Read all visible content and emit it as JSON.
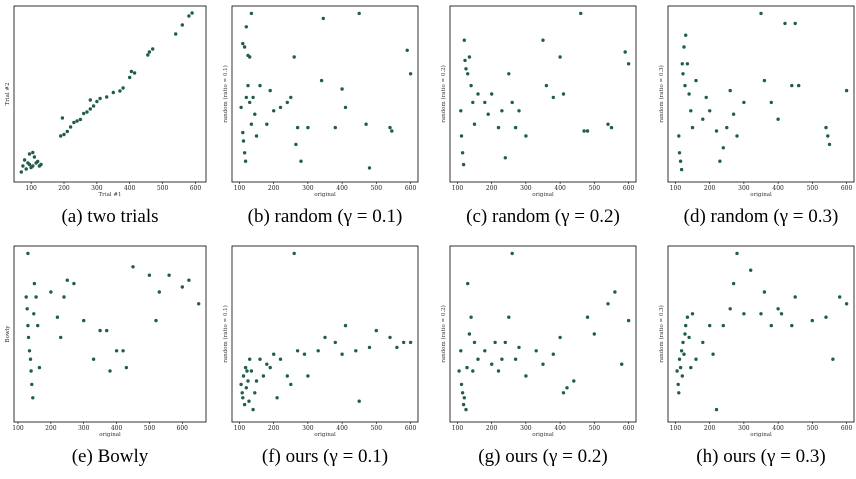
{
  "chart_data": [
    {
      "type": "scatter",
      "caption": "(a) two trials",
      "xlabel": "Trial #1",
      "ylabel": "Trial #2",
      "xlim": [
        60,
        620
      ],
      "ylim": [
        60,
        620
      ],
      "xticks": [
        100,
        200,
        300,
        400,
        500,
        600
      ],
      "points": [
        [
          70,
          80
        ],
        [
          75,
          100
        ],
        [
          80,
          120
        ],
        [
          85,
          90
        ],
        [
          90,
          110
        ],
        [
          95,
          105
        ],
        [
          100,
          95
        ],
        [
          105,
          100
        ],
        [
          110,
          130
        ],
        [
          115,
          110
        ],
        [
          120,
          115
        ],
        [
          125,
          100
        ],
        [
          130,
          105
        ],
        [
          95,
          140
        ],
        [
          105,
          145
        ],
        [
          190,
          200
        ],
        [
          195,
          260
        ],
        [
          200,
          205
        ],
        [
          210,
          215
        ],
        [
          220,
          230
        ],
        [
          230,
          245
        ],
        [
          240,
          250
        ],
        [
          250,
          255
        ],
        [
          260,
          275
        ],
        [
          270,
          280
        ],
        [
          280,
          290
        ],
        [
          290,
          300
        ],
        [
          300,
          315
        ],
        [
          280,
          320
        ],
        [
          310,
          325
        ],
        [
          330,
          330
        ],
        [
          350,
          345
        ],
        [
          370,
          350
        ],
        [
          380,
          360
        ],
        [
          400,
          395
        ],
        [
          405,
          415
        ],
        [
          415,
          410
        ],
        [
          455,
          470
        ],
        [
          460,
          480
        ],
        [
          470,
          490
        ],
        [
          540,
          540
        ],
        [
          560,
          570
        ],
        [
          580,
          600
        ],
        [
          590,
          610
        ]
      ]
    },
    {
      "type": "scatter",
      "caption": "(b) random (γ = 0.1)",
      "xlabel": "original",
      "ylabel": "random (ratio = 0.1)",
      "xlim": [
        90,
        610
      ],
      "ylim": [
        0,
        1
      ],
      "xticks": [
        100,
        200,
        300,
        400,
        500,
        600
      ],
      "points": [
        [
          110,
          0.8
        ],
        [
          115,
          0.78
        ],
        [
          120,
          0.9
        ],
        [
          125,
          0.73
        ],
        [
          130,
          0.72
        ],
        [
          135,
          0.98
        ],
        [
          105,
          0.42
        ],
        [
          110,
          0.27
        ],
        [
          112,
          0.22
        ],
        [
          115,
          0.15
        ],
        [
          118,
          0.1
        ],
        [
          120,
          0.48
        ],
        [
          125,
          0.55
        ],
        [
          130,
          0.45
        ],
        [
          135,
          0.32
        ],
        [
          140,
          0.48
        ],
        [
          145,
          0.38
        ],
        [
          150,
          0.25
        ],
        [
          160,
          0.55
        ],
        [
          180,
          0.32
        ],
        [
          190,
          0.52
        ],
        [
          200,
          0.4
        ],
        [
          220,
          0.42
        ],
        [
          240,
          0.45
        ],
        [
          250,
          0.48
        ],
        [
          260,
          0.72
        ],
        [
          265,
          0.2
        ],
        [
          270,
          0.3
        ],
        [
          280,
          0.1
        ],
        [
          300,
          0.3
        ],
        [
          340,
          0.58
        ],
        [
          345,
          0.95
        ],
        [
          380,
          0.3
        ],
        [
          400,
          0.53
        ],
        [
          410,
          0.42
        ],
        [
          450,
          0.98
        ],
        [
          470,
          0.32
        ],
        [
          480,
          0.06
        ],
        [
          540,
          0.3
        ],
        [
          545,
          0.28
        ],
        [
          590,
          0.76
        ],
        [
          600,
          0.62
        ]
      ]
    },
    {
      "type": "scatter",
      "caption": "(c) random (γ = 0.2)",
      "xlabel": "original",
      "ylabel": "random (ratio = 0.2)",
      "xlim": [
        90,
        610
      ],
      "ylim": [
        0,
        1
      ],
      "xticks": [
        100,
        200,
        300,
        400,
        500,
        600
      ],
      "points": [
        [
          110,
          0.4
        ],
        [
          112,
          0.25
        ],
        [
          115,
          0.15
        ],
        [
          118,
          0.08
        ],
        [
          120,
          0.82
        ],
        [
          122,
          0.7
        ],
        [
          125,
          0.65
        ],
        [
          130,
          0.62
        ],
        [
          135,
          0.72
        ],
        [
          140,
          0.55
        ],
        [
          145,
          0.45
        ],
        [
          150,
          0.32
        ],
        [
          160,
          0.5
        ],
        [
          180,
          0.45
        ],
        [
          190,
          0.38
        ],
        [
          200,
          0.5
        ],
        [
          220,
          0.3
        ],
        [
          230,
          0.4
        ],
        [
          240,
          0.12
        ],
        [
          250,
          0.62
        ],
        [
          260,
          0.45
        ],
        [
          270,
          0.3
        ],
        [
          280,
          0.4
        ],
        [
          300,
          0.25
        ],
        [
          350,
          0.82
        ],
        [
          360,
          0.55
        ],
        [
          380,
          0.48
        ],
        [
          400,
          0.72
        ],
        [
          410,
          0.5
        ],
        [
          460,
          0.98
        ],
        [
          470,
          0.28
        ],
        [
          480,
          0.28
        ],
        [
          540,
          0.32
        ],
        [
          550,
          0.3
        ],
        [
          590,
          0.75
        ],
        [
          600,
          0.68
        ]
      ]
    },
    {
      "type": "scatter",
      "caption": "(d) random (γ = 0.3)",
      "xlabel": "original",
      "ylabel": "random (ratio = 0.3)",
      "xlim": [
        90,
        610
      ],
      "ylim": [
        0,
        1
      ],
      "xticks": [
        100,
        200,
        300,
        400,
        500,
        600
      ],
      "points": [
        [
          110,
          0.25
        ],
        [
          112,
          0.15
        ],
        [
          115,
          0.1
        ],
        [
          118,
          0.05
        ],
        [
          120,
          0.68
        ],
        [
          122,
          0.62
        ],
        [
          125,
          0.78
        ],
        [
          128,
          0.55
        ],
        [
          130,
          0.85
        ],
        [
          135,
          0.68
        ],
        [
          140,
          0.5
        ],
        [
          145,
          0.4
        ],
        [
          150,
          0.3
        ],
        [
          160,
          0.58
        ],
        [
          180,
          0.35
        ],
        [
          190,
          0.48
        ],
        [
          200,
          0.4
        ],
        [
          220,
          0.28
        ],
        [
          230,
          0.1
        ],
        [
          240,
          0.18
        ],
        [
          250,
          0.3
        ],
        [
          260,
          0.52
        ],
        [
          270,
          0.38
        ],
        [
          280,
          0.25
        ],
        [
          300,
          0.45
        ],
        [
          350,
          0.98
        ],
        [
          360,
          0.58
        ],
        [
          380,
          0.45
        ],
        [
          400,
          0.35
        ],
        [
          420,
          0.92
        ],
        [
          440,
          0.55
        ],
        [
          450,
          0.92
        ],
        [
          460,
          0.55
        ],
        [
          540,
          0.3
        ],
        [
          545,
          0.25
        ],
        [
          550,
          0.2
        ],
        [
          600,
          0.52
        ]
      ]
    },
    {
      "type": "scatter",
      "caption": "(e) Bowly",
      "xlabel": "original",
      "ylabel": "Bowly",
      "xlim": [
        100,
        660
      ],
      "ylim": [
        0,
        1
      ],
      "xticks": [
        100,
        200,
        300,
        400,
        500,
        600
      ],
      "points": [
        [
          125,
          0.72
        ],
        [
          128,
          0.65
        ],
        [
          130,
          0.55
        ],
        [
          132,
          0.48
        ],
        [
          135,
          0.4
        ],
        [
          138,
          0.35
        ],
        [
          140,
          0.28
        ],
        [
          142,
          0.2
        ],
        [
          145,
          0.12
        ],
        [
          148,
          0.62
        ],
        [
          150,
          0.8
        ],
        [
          155,
          0.72
        ],
        [
          160,
          0.55
        ],
        [
          165,
          0.3
        ],
        [
          130,
          0.98
        ],
        [
          200,
          0.75
        ],
        [
          220,
          0.6
        ],
        [
          230,
          0.48
        ],
        [
          240,
          0.72
        ],
        [
          250,
          0.82
        ],
        [
          270,
          0.8
        ],
        [
          300,
          0.58
        ],
        [
          330,
          0.35
        ],
        [
          350,
          0.52
        ],
        [
          370,
          0.52
        ],
        [
          380,
          0.28
        ],
        [
          400,
          0.4
        ],
        [
          420,
          0.4
        ],
        [
          430,
          0.3
        ],
        [
          450,
          0.9
        ],
        [
          500,
          0.85
        ],
        [
          520,
          0.58
        ],
        [
          530,
          0.75
        ],
        [
          560,
          0.85
        ],
        [
          600,
          0.78
        ],
        [
          620,
          0.82
        ],
        [
          650,
          0.68
        ]
      ]
    },
    {
      "type": "scatter",
      "caption": "(f) ours (γ = 0.1)",
      "xlabel": "original",
      "ylabel": "random (ratio = 0.1)",
      "xlim": [
        90,
        610
      ],
      "ylim": [
        0,
        1
      ],
      "xticks": [
        100,
        200,
        300,
        400,
        500,
        600
      ],
      "points": [
        [
          105,
          0.2
        ],
        [
          108,
          0.15
        ],
        [
          110,
          0.12
        ],
        [
          112,
          0.25
        ],
        [
          115,
          0.08
        ],
        [
          118,
          0.3
        ],
        [
          120,
          0.18
        ],
        [
          122,
          0.28
        ],
        [
          125,
          0.22
        ],
        [
          128,
          0.1
        ],
        [
          130,
          0.35
        ],
        [
          135,
          0.28
        ],
        [
          140,
          0.05
        ],
        [
          145,
          0.15
        ],
        [
          150,
          0.22
        ],
        [
          160,
          0.35
        ],
        [
          170,
          0.25
        ],
        [
          180,
          0.32
        ],
        [
          190,
          0.3
        ],
        [
          200,
          0.38
        ],
        [
          210,
          0.12
        ],
        [
          220,
          0.35
        ],
        [
          240,
          0.25
        ],
        [
          250,
          0.2
        ],
        [
          260,
          0.98
        ],
        [
          270,
          0.4
        ],
        [
          290,
          0.38
        ],
        [
          300,
          0.25
        ],
        [
          330,
          0.4
        ],
        [
          350,
          0.48
        ],
        [
          380,
          0.45
        ],
        [
          400,
          0.38
        ],
        [
          410,
          0.55
        ],
        [
          440,
          0.4
        ],
        [
          450,
          0.1
        ],
        [
          480,
          0.42
        ],
        [
          500,
          0.52
        ],
        [
          540,
          0.48
        ],
        [
          560,
          0.42
        ],
        [
          580,
          0.45
        ],
        [
          600,
          0.45
        ]
      ]
    },
    {
      "type": "scatter",
      "caption": "(g) ours (γ = 0.2)",
      "xlabel": "original",
      "ylabel": "random (ratio = 0.2)",
      "xlim": [
        90,
        610
      ],
      "ylim": [
        0,
        1
      ],
      "xticks": [
        100,
        200,
        300,
        400,
        500,
        600
      ],
      "points": [
        [
          105,
          0.28
        ],
        [
          110,
          0.4
        ],
        [
          112,
          0.2
        ],
        [
          115,
          0.15
        ],
        [
          118,
          0.08
        ],
        [
          120,
          0.12
        ],
        [
          125,
          0.05
        ],
        [
          128,
          0.3
        ],
        [
          130,
          0.8
        ],
        [
          135,
          0.5
        ],
        [
          140,
          0.6
        ],
        [
          145,
          0.28
        ],
        [
          150,
          0.45
        ],
        [
          160,
          0.35
        ],
        [
          180,
          0.4
        ],
        [
          200,
          0.32
        ],
        [
          210,
          0.45
        ],
        [
          220,
          0.28
        ],
        [
          230,
          0.35
        ],
        [
          240,
          0.45
        ],
        [
          250,
          0.6
        ],
        [
          260,
          0.98
        ],
        [
          270,
          0.35
        ],
        [
          280,
          0.42
        ],
        [
          300,
          0.25
        ],
        [
          330,
          0.4
        ],
        [
          350,
          0.32
        ],
        [
          380,
          0.38
        ],
        [
          400,
          0.48
        ],
        [
          410,
          0.15
        ],
        [
          420,
          0.18
        ],
        [
          440,
          0.22
        ],
        [
          480,
          0.6
        ],
        [
          500,
          0.5
        ],
        [
          540,
          0.68
        ],
        [
          560,
          0.75
        ],
        [
          580,
          0.32
        ],
        [
          600,
          0.58
        ]
      ]
    },
    {
      "type": "scatter",
      "caption": "(h) ours (γ = 0.3)",
      "xlabel": "original",
      "ylabel": "random (ratio = 0.3)",
      "xlim": [
        90,
        610
      ],
      "ylim": [
        0,
        1
      ],
      "xticks": [
        100,
        200,
        300,
        400,
        500,
        600
      ],
      "points": [
        [
          105,
          0.28
        ],
        [
          108,
          0.2
        ],
        [
          110,
          0.15
        ],
        [
          112,
          0.35
        ],
        [
          115,
          0.3
        ],
        [
          118,
          0.4
        ],
        [
          120,
          0.25
        ],
        [
          122,
          0.45
        ],
        [
          125,
          0.38
        ],
        [
          128,
          0.5
        ],
        [
          130,
          0.55
        ],
        [
          135,
          0.6
        ],
        [
          140,
          0.48
        ],
        [
          145,
          0.3
        ],
        [
          150,
          0.62
        ],
        [
          160,
          0.35
        ],
        [
          180,
          0.45
        ],
        [
          200,
          0.55
        ],
        [
          210,
          0.38
        ],
        [
          220,
          0.05
        ],
        [
          240,
          0.55
        ],
        [
          260,
          0.65
        ],
        [
          270,
          0.8
        ],
        [
          280,
          0.98
        ],
        [
          300,
          0.62
        ],
        [
          320,
          0.88
        ],
        [
          350,
          0.62
        ],
        [
          360,
          0.75
        ],
        [
          380,
          0.55
        ],
        [
          400,
          0.65
        ],
        [
          410,
          0.62
        ],
        [
          440,
          0.55
        ],
        [
          450,
          0.72
        ],
        [
          500,
          0.58
        ],
        [
          540,
          0.6
        ],
        [
          560,
          0.35
        ],
        [
          580,
          0.72
        ],
        [
          600,
          0.68
        ]
      ]
    }
  ]
}
